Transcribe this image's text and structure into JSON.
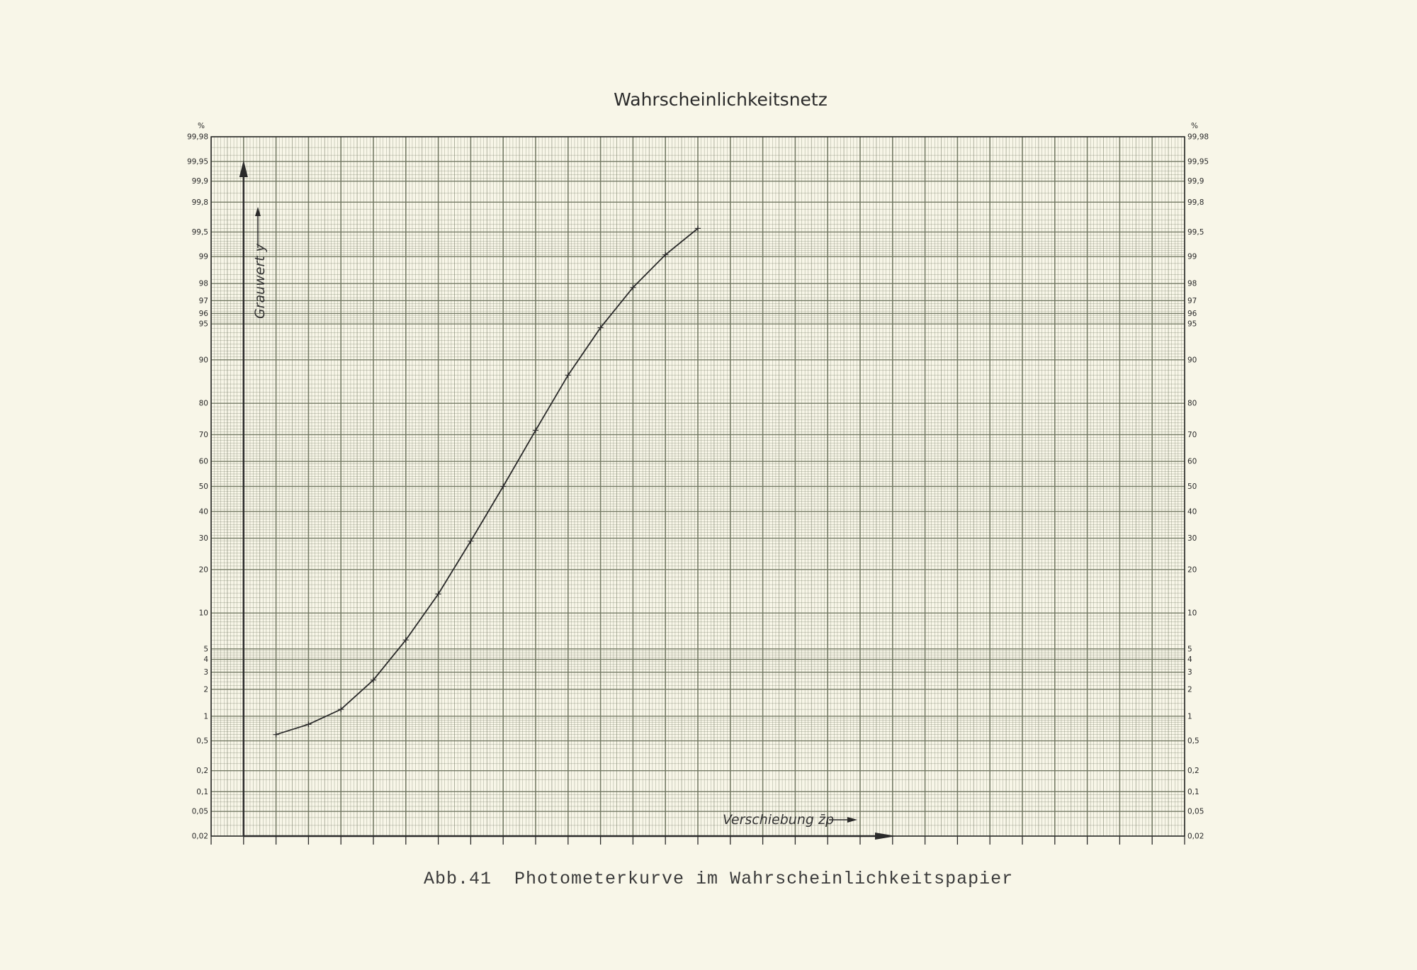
{
  "chart_data": {
    "type": "line",
    "title": "Wahrscheinlichkeitsnetz",
    "caption": "Abb.41  Photometerkurve im Wahrscheinlichkeitspapier",
    "xlabel": "Verschiebung z̄p",
    "ylabel": "Grauwert y",
    "yunit": "%",
    "yscale": "normal-probability",
    "ylim": [
      0.02,
      99.98
    ],
    "xlim": [
      -1,
      29
    ],
    "grid": true,
    "yticks": [
      {
        "value": 99.98,
        "label": "99,98"
      },
      {
        "value": 99.95,
        "label": "99,95"
      },
      {
        "value": 99.9,
        "label": "99,9"
      },
      {
        "value": 99.8,
        "label": "99,8"
      },
      {
        "value": 99.5,
        "label": "99,5"
      },
      {
        "value": 99,
        "label": "99"
      },
      {
        "value": 98,
        "label": "98"
      },
      {
        "value": 97,
        "label": "97"
      },
      {
        "value": 96,
        "label": "96"
      },
      {
        "value": 95,
        "label": "95"
      },
      {
        "value": 90,
        "label": "90"
      },
      {
        "value": 80,
        "label": "80"
      },
      {
        "value": 70,
        "label": "70"
      },
      {
        "value": 60,
        "label": "60"
      },
      {
        "value": 50,
        "label": "50"
      },
      {
        "value": 40,
        "label": "40"
      },
      {
        "value": 30,
        "label": "30"
      },
      {
        "value": 20,
        "label": "20"
      },
      {
        "value": 10,
        "label": "10"
      },
      {
        "value": 5,
        "label": "5"
      },
      {
        "value": 4,
        "label": "4"
      },
      {
        "value": 3,
        "label": "3"
      },
      {
        "value": 2,
        "label": "2"
      },
      {
        "value": 1,
        "label": "1"
      },
      {
        "value": 0.5,
        "label": "0,5"
      },
      {
        "value": 0.2,
        "label": "0,2"
      },
      {
        "value": 0.1,
        "label": "0,1"
      },
      {
        "value": 0.05,
        "label": "0,05"
      },
      {
        "value": 0.02,
        "label": "0,02"
      }
    ],
    "series": [
      {
        "x": [
          1,
          2,
          3,
          4,
          5,
          6,
          7,
          8,
          9,
          10,
          11,
          12,
          13,
          14
        ],
        "y": [
          0.6,
          0.8,
          1.2,
          2.5,
          6,
          13.8,
          29,
          50,
          71.5,
          87,
          94.6,
          97.8,
          99.05,
          99.55
        ],
        "marker": "cross",
        "color": "#2a2a2a"
      }
    ],
    "colors": {
      "paper": "#f8f6e8",
      "grid": "#6f7560",
      "ink": "#2a2a2a"
    }
  }
}
